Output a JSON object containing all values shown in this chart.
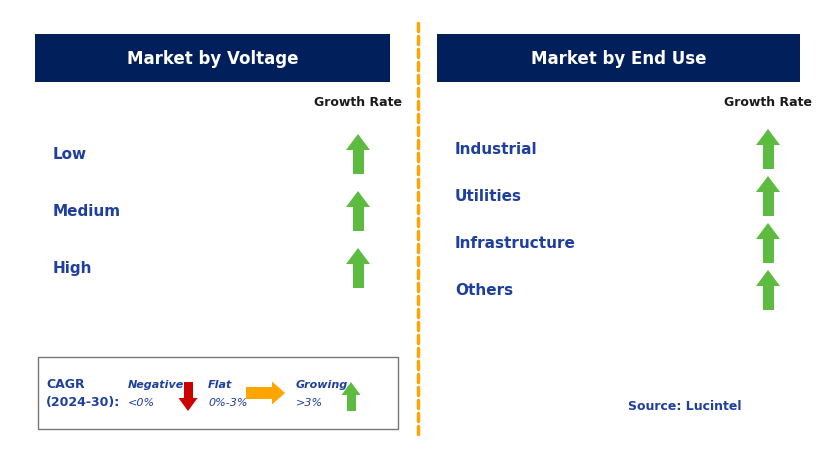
{
  "left_title": "Market by Voltage",
  "right_title": "Market by End Use",
  "left_items": [
    "Low",
    "Medium",
    "High"
  ],
  "right_items": [
    "Industrial",
    "Utilities",
    "Infrastructure",
    "Others"
  ],
  "header_bg": "#001F5B",
  "header_text_color": "#FFFFFF",
  "item_text_color": "#1F3F9F",
  "growth_rate_label": "Growth Rate",
  "growth_rate_color": "#1a1a1a",
  "green_arrow_color": "#5DBB3F",
  "red_arrow_color": "#CC0000",
  "yellow_arrow_color": "#FFA500",
  "dashed_line_color": "#FFA500",
  "source_text": "Source: Lucintel",
  "source_color": "#1F3F9F",
  "bg_color": "#FFFFFF",
  "fig_width": 8.29,
  "fig_height": 4.6,
  "dpi": 100
}
